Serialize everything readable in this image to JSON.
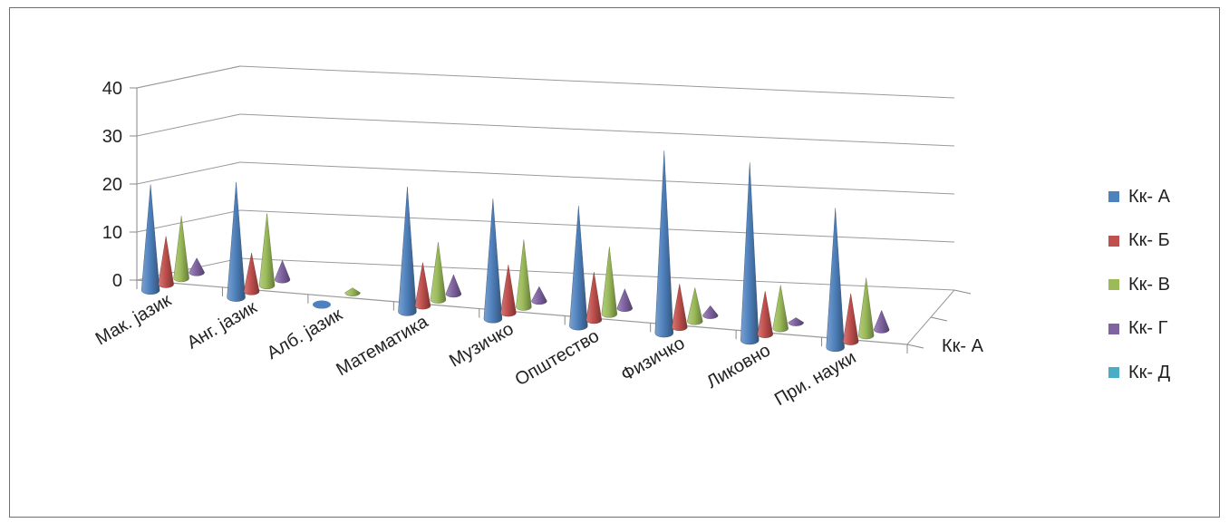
{
  "chart_data": {
    "type": "bar",
    "style": "3d-cone",
    "categories": [
      "Мак. јазик",
      "Анг. јазик",
      "Алб. јазик",
      "Математика",
      "Музичко",
      "Општество",
      "Физичко",
      "Ликовно",
      "При. науки"
    ],
    "series": [
      {
        "name": "Кк- А",
        "color": "#4F81BD",
        "values": [
          22,
          24,
          0,
          26,
          25,
          25,
          38,
          37,
          29
        ]
      },
      {
        "name": "Кк- Б",
        "color": "#C0504D",
        "values": [
          10,
          8,
          0,
          9,
          10,
          10,
          9,
          9,
          10
        ]
      },
      {
        "name": "Кк- В",
        "color": "#9BBB59",
        "values": [
          13,
          15,
          1,
          12,
          14,
          14,
          7,
          9,
          12
        ]
      },
      {
        "name": "Кк- Г",
        "color": "#8064A2",
        "values": [
          3,
          4,
          0,
          4,
          3,
          4,
          2,
          1,
          4
        ]
      },
      {
        "name": "Кк- Д",
        "color": "#4BACC6",
        "values": [
          0,
          0,
          0,
          0,
          0,
          0,
          0,
          0,
          0
        ]
      }
    ],
    "yticks": [
      0,
      10,
      20,
      30,
      40
    ],
    "ylim": [
      0,
      40
    ],
    "depth_axis_label": "Кк- А",
    "grid": true,
    "legend_position": "right"
  }
}
